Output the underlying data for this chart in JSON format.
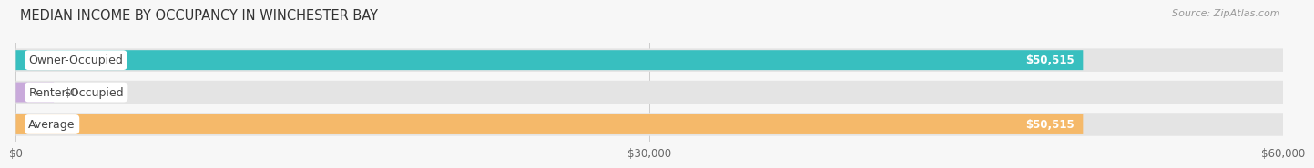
{
  "title": "MEDIAN INCOME BY OCCUPANCY IN WINCHESTER BAY",
  "source": "Source: ZipAtlas.com",
  "categories": [
    "Owner-Occupied",
    "Renter-Occupied",
    "Average"
  ],
  "values": [
    50515,
    0,
    50515
  ],
  "bar_colors": [
    "#38bfbf",
    "#c9aadb",
    "#f5b96a"
  ],
  "bar_labels": [
    "$50,515",
    "$0",
    "$50,515"
  ],
  "xlim": [
    0,
    60000
  ],
  "xticks": [
    0,
    30000,
    60000
  ],
  "xticklabels": [
    "$0",
    "$30,000",
    "$60,000"
  ],
  "background_color": "#f7f7f7",
  "bar_bg_color": "#e4e4e4",
  "title_fontsize": 10.5,
  "label_fontsize": 9,
  "source_fontsize": 8,
  "tick_fontsize": 8.5,
  "renter_tiny_val": 1800
}
